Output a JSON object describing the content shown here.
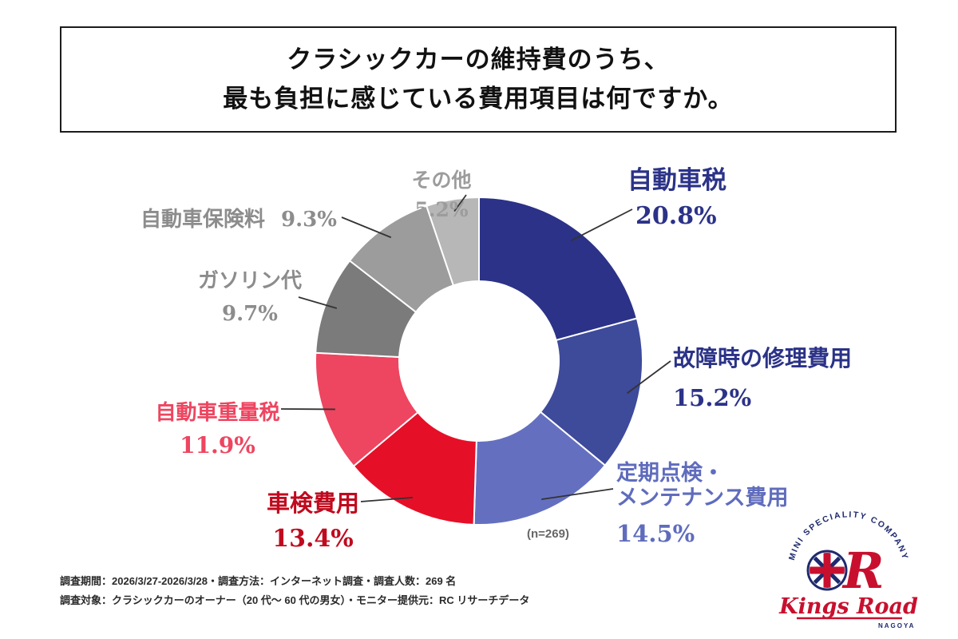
{
  "title": {
    "line1": "クラシックカーの維持費のうち、",
    "line2": "最も負担に感じている費用項目は何ですか。"
  },
  "chart_data": {
    "type": "pie",
    "subtype": "donut",
    "title": "クラシックカーの維持費のうち、最も負担に感じている費用項目は何ですか。",
    "sample_note": "(n=269)",
    "start_angle_deg": 0,
    "direction": "clockwise",
    "total": 100.0,
    "segments": [
      {
        "label": "自動車税",
        "value": 20.8,
        "pct": "20.8%",
        "color": "#2b3287",
        "label_color": "#2b3287"
      },
      {
        "label": "故障時の修理費用",
        "value": 15.2,
        "pct": "15.2%",
        "color": "#3e4a9a",
        "label_color": "#2b3287"
      },
      {
        "label": "定期点検・メンテナンス費用",
        "label_line1": "定期点検・",
        "label_line2": "メンテナンス費用",
        "value": 14.5,
        "pct": "14.5%",
        "color": "#6470bf",
        "label_color": "#5f6cbd"
      },
      {
        "label": "車検費用",
        "value": 13.4,
        "pct": "13.4%",
        "color": "#e60f28",
        "label_color": "#c00a1e"
      },
      {
        "label": "自動車重量税",
        "value": 11.9,
        "pct": "11.9%",
        "color": "#ee4560",
        "label_color": "#ee4560"
      },
      {
        "label": "ガソリン代",
        "value": 9.7,
        "pct": "9.7%",
        "color": "#7b7b7b",
        "label_color": "#8c8c8c"
      },
      {
        "label": "自動車保険料",
        "value": 9.3,
        "pct": "9.3%",
        "color": "#9c9c9c",
        "label_color": "#8c8c8c"
      },
      {
        "label": "その他",
        "value": 5.2,
        "pct": "5.2%",
        "color": "#b7b7b7",
        "label_color": "#9c9c9c"
      }
    ]
  },
  "footer": {
    "line1": "調査期間：2026/3/27-2026/3/28・調査方法：インターネット調査・調査人数：269 名",
    "line2": "調査対象：クラシックカーのオーナー（20 代〜 60 代の男女）・モニター提供元：RC リサーチデータ"
  },
  "logo": {
    "arc_text": "MINI SPECIALITY COMPANY",
    "brand": "Kings Road",
    "sub": "NAGOYA",
    "navy": "#1e2a6e",
    "red": "#c8102e"
  }
}
